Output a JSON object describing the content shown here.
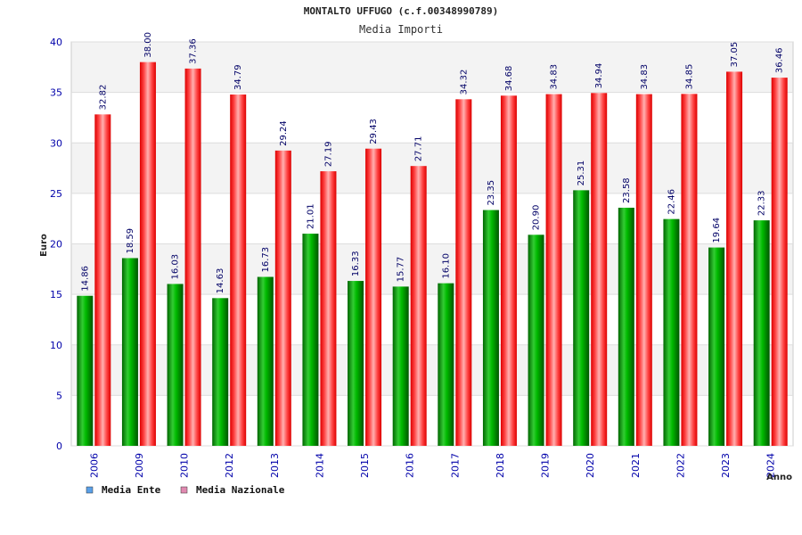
{
  "chart_data": {
    "type": "bar",
    "title": "MONTALTO UFFUGO (c.f.00348990789)",
    "subtitle": "Media Importi",
    "ylabel": "Euro",
    "xlabel": "Anno",
    "ylim": [
      0,
      40
    ],
    "yticks": [
      0,
      5,
      10,
      15,
      20,
      25,
      30,
      35,
      40
    ],
    "categories": [
      "2006",
      "2009",
      "2010",
      "2012",
      "2013",
      "2014",
      "2015",
      "2016",
      "2017",
      "2018",
      "2019",
      "2020",
      "2021",
      "2022",
      "2023",
      "2024"
    ],
    "series": [
      {
        "name": "Media Ente",
        "color": "#00aa00",
        "legend_color": "#5aa0e8",
        "values": [
          14.86,
          18.59,
          16.03,
          14.63,
          16.73,
          21.01,
          16.33,
          15.77,
          16.1,
          23.35,
          20.9,
          25.31,
          23.58,
          22.46,
          19.64,
          22.33
        ],
        "labels": [
          "14.86",
          "18.59",
          "16.03",
          "14.63",
          "16.73",
          "21.01",
          "16.33",
          "15.77",
          "16.10",
          "23.35",
          "20.90",
          "25.31",
          "23.58",
          "22.46",
          "19.64",
          "22.33"
        ]
      },
      {
        "name": "Media Nazionale",
        "color": "#ee0000",
        "legend_color": "#e089b0",
        "values": [
          32.82,
          38.0,
          37.36,
          34.79,
          29.24,
          27.19,
          29.43,
          27.71,
          34.32,
          34.68,
          34.83,
          34.94,
          34.83,
          34.85,
          37.05,
          36.46
        ],
        "labels": [
          "32.82",
          "38.00",
          "37.36",
          "34.79",
          "29.24",
          "27.19",
          "29.43",
          "27.71",
          "34.32",
          "34.68",
          "34.83",
          "34.94",
          "34.83",
          "34.85",
          "37.05",
          "36.46"
        ]
      }
    ],
    "grid": true,
    "legend_position": "bottom-left"
  }
}
